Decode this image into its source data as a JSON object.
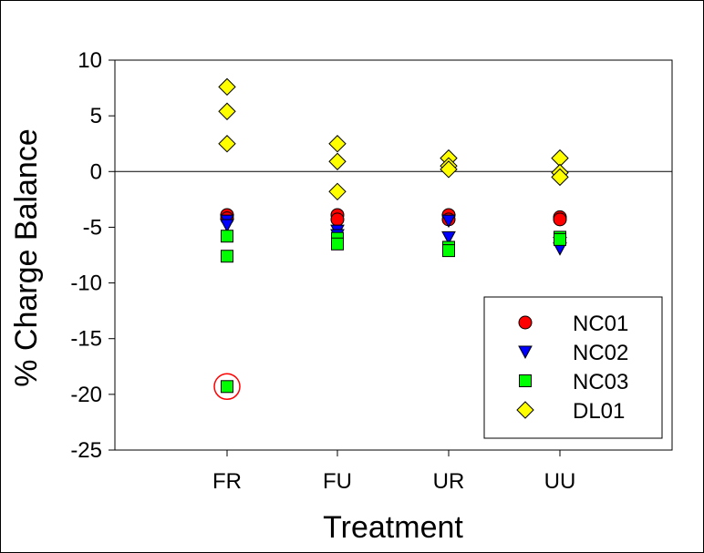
{
  "chart_data": {
    "type": "scatter",
    "title": "",
    "xlabel": "Treatment",
    "ylabel": "% Charge Balance",
    "categories": [
      "FR",
      "FU",
      "UR",
      "UU"
    ],
    "ylim": [
      -25,
      10
    ],
    "yticks": [
      10,
      5,
      0,
      -5,
      -10,
      -15,
      -20,
      -25
    ],
    "yticklabels": [
      "10",
      "5",
      "0",
      "-5",
      "-10",
      "-15",
      "-20",
      "-25"
    ],
    "reference_line_y": 0,
    "grid": false,
    "legend_position": "bottom-right",
    "series": [
      {
        "name": "NC01",
        "marker": "circle",
        "color": "#ff0000",
        "points": [
          {
            "x": "FR",
            "y": -3.9
          },
          {
            "x": "FR",
            "y": -4.2
          },
          {
            "x": "FU",
            "y": -3.9
          },
          {
            "x": "FU",
            "y": -4.3
          },
          {
            "x": "UR",
            "y": -3.9
          },
          {
            "x": "UR",
            "y": -4.3
          },
          {
            "x": "UU",
            "y": -4.1
          },
          {
            "x": "UU",
            "y": -4.3
          }
        ]
      },
      {
        "name": "NC02",
        "marker": "triangle-down",
        "color": "#0000ff",
        "points": [
          {
            "x": "FR",
            "y": -4.4
          },
          {
            "x": "FR",
            "y": -4.8
          },
          {
            "x": "FU",
            "y": -5.3
          },
          {
            "x": "FU",
            "y": -5.7
          },
          {
            "x": "UR",
            "y": -4.4
          },
          {
            "x": "UR",
            "y": -5.9
          },
          {
            "x": "UU",
            "y": -6.4
          },
          {
            "x": "UU",
            "y": -6.9
          }
        ]
      },
      {
        "name": "NC03",
        "marker": "square",
        "color": "#00ff00",
        "points": [
          {
            "x": "FR",
            "y": -5.8
          },
          {
            "x": "FR",
            "y": -7.6
          },
          {
            "x": "FR",
            "y": -19.3,
            "circled": true
          },
          {
            "x": "FU",
            "y": -6.0
          },
          {
            "x": "FU",
            "y": -6.5
          },
          {
            "x": "UR",
            "y": -6.8
          },
          {
            "x": "UR",
            "y": -7.1
          },
          {
            "x": "UU",
            "y": -5.9
          },
          {
            "x": "UU",
            "y": -6.1
          }
        ]
      },
      {
        "name": "DL01",
        "marker": "diamond",
        "color": "#ffff00",
        "points": [
          {
            "x": "FR",
            "y": 7.6
          },
          {
            "x": "FR",
            "y": 5.4
          },
          {
            "x": "FR",
            "y": 2.5
          },
          {
            "x": "FU",
            "y": 2.5
          },
          {
            "x": "FU",
            "y": 0.9
          },
          {
            "x": "FU",
            "y": -1.8
          },
          {
            "x": "UR",
            "y": 1.2
          },
          {
            "x": "UR",
            "y": 0.5
          },
          {
            "x": "UR",
            "y": 0.2
          },
          {
            "x": "UU",
            "y": 1.2
          },
          {
            "x": "UU",
            "y": -0.1
          },
          {
            "x": "UU",
            "y": -0.5
          }
        ]
      }
    ],
    "highlight_circle_color": "#ff0000"
  }
}
